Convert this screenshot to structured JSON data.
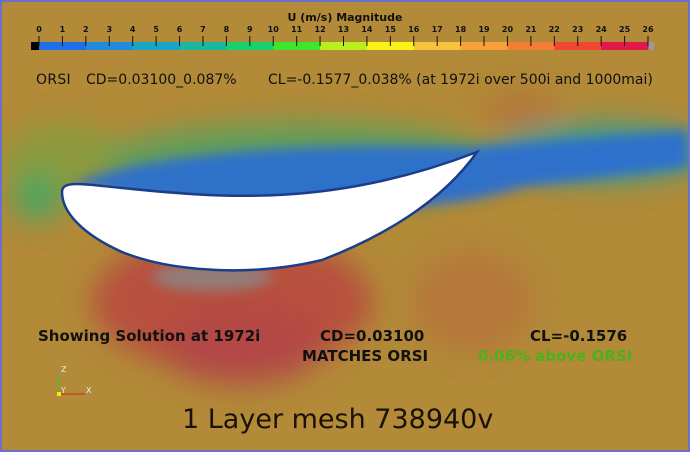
{
  "colorbar": {
    "title": "U (m/s) Magnitude",
    "ticks": [
      "0",
      "1",
      "2",
      "3",
      "4",
      "5",
      "6",
      "7",
      "8",
      "9",
      "10",
      "11",
      "12",
      "13",
      "14",
      "15",
      "16",
      "17",
      "18",
      "19",
      "20",
      "21",
      "22",
      "23",
      "24",
      "25",
      "26"
    ],
    "range": [
      0,
      26
    ],
    "colors": [
      "#1f6fe8",
      "#1f8ce0",
      "#17a6c8",
      "#19b8a0",
      "#17d070",
      "#3de62a",
      "#b8ef1c",
      "#f7f31a",
      "#f8c33c",
      "#f8a03a",
      "#f47c34",
      "#f04830",
      "#e0184c"
    ],
    "below_color": "#000000",
    "above_color": "#9a9a9a"
  },
  "reference": {
    "label": "ORSI",
    "cd": "CD=0.03100_0.087%",
    "cl": "CL=-0.1577_0.038% (at 1972i over 500i and 1000mai)"
  },
  "solution": {
    "showing": "Showing Solution at 1972i",
    "cd": "CD=0.03100",
    "cd_note": "MATCHES ORSI",
    "cl": "CL=-0.1576",
    "cl_note": "0.06% above ORSI",
    "cl_note_color": "#4bb11c"
  },
  "mesh_label": "1 Layer mesh 738940v",
  "axes": {
    "z": "Z",
    "y": "Y",
    "x": "X"
  }
}
